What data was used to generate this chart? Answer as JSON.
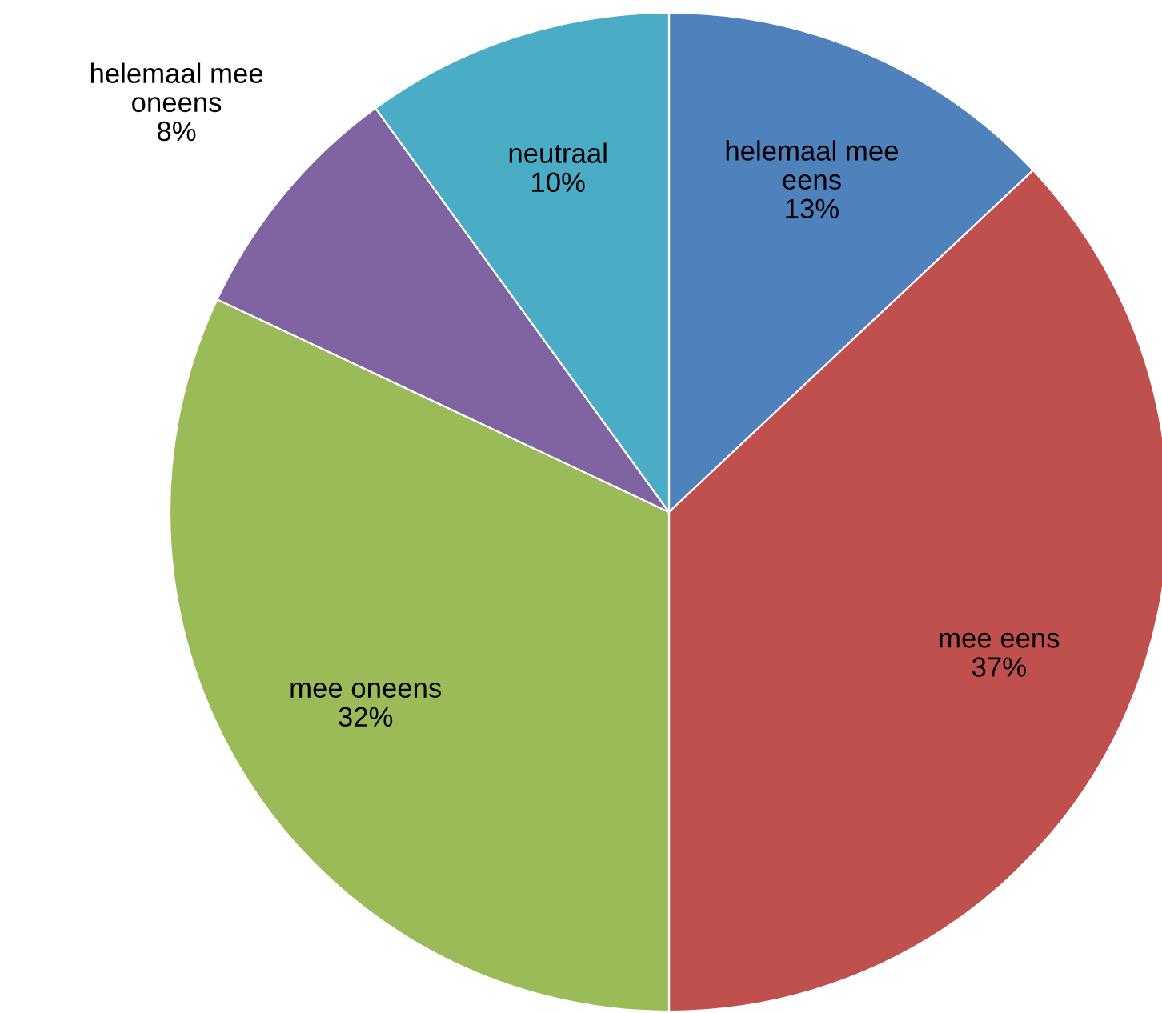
{
  "chart_data": {
    "type": "pie",
    "categories": [
      "helemaal mee\neens",
      "mee eens",
      "mee oneens",
      "helemaal mee\noneens",
      "neutraal"
    ],
    "values": [
      13,
      37,
      32,
      8,
      10
    ],
    "value_labels": [
      "13%",
      "37%",
      "32%",
      "8%",
      "10%"
    ],
    "colors": [
      "#4f81bd",
      "#c0504d",
      "#9bbb59",
      "#8064a2",
      "#4bacc6"
    ],
    "legend": false
  }
}
